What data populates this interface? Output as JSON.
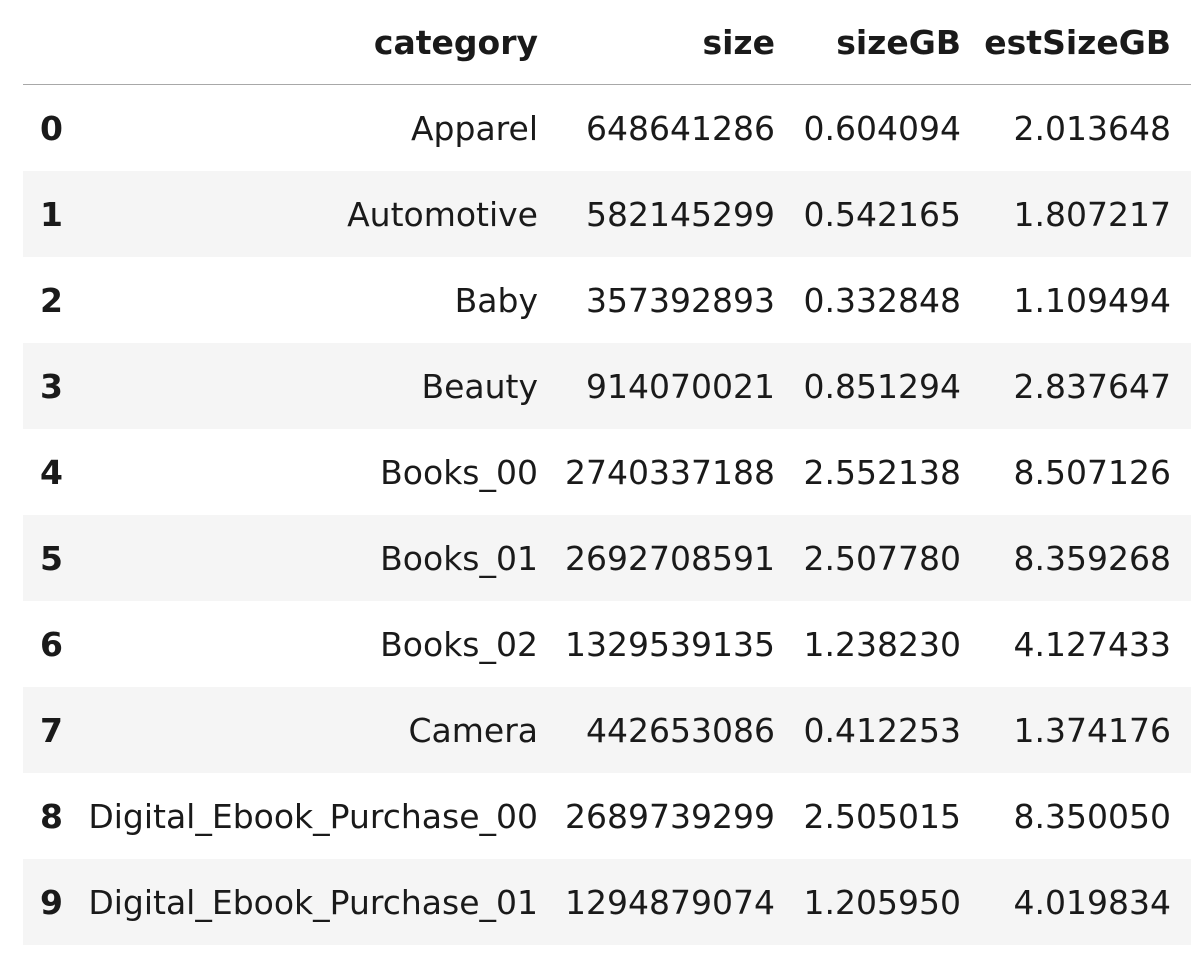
{
  "table": {
    "columns": [
      "",
      "category",
      "size",
      "sizeGB",
      "estSizeGB"
    ],
    "rows": [
      {
        "index": "0",
        "category": "Apparel",
        "size": "648641286",
        "sizeGB": "0.604094",
        "estSizeGB": "2.013648"
      },
      {
        "index": "1",
        "category": "Automotive",
        "size": "582145299",
        "sizeGB": "0.542165",
        "estSizeGB": "1.807217"
      },
      {
        "index": "2",
        "category": "Baby",
        "size": "357392893",
        "sizeGB": "0.332848",
        "estSizeGB": "1.109494"
      },
      {
        "index": "3",
        "category": "Beauty",
        "size": "914070021",
        "sizeGB": "0.851294",
        "estSizeGB": "2.837647"
      },
      {
        "index": "4",
        "category": "Books_00",
        "size": "2740337188",
        "sizeGB": "2.552138",
        "estSizeGB": "8.507126"
      },
      {
        "index": "5",
        "category": "Books_01",
        "size": "2692708591",
        "sizeGB": "2.507780",
        "estSizeGB": "8.359268"
      },
      {
        "index": "6",
        "category": "Books_02",
        "size": "1329539135",
        "sizeGB": "1.238230",
        "estSizeGB": "4.127433"
      },
      {
        "index": "7",
        "category": "Camera",
        "size": "442653086",
        "sizeGB": "0.412253",
        "estSizeGB": "1.374176"
      },
      {
        "index": "8",
        "category": "Digital_Ebook_Purchase_00",
        "size": "2689739299",
        "sizeGB": "2.505015",
        "estSizeGB": "8.350050"
      },
      {
        "index": "9",
        "category": "Digital_Ebook_Purchase_01",
        "size": "1294879074",
        "sizeGB": "1.205950",
        "estSizeGB": "4.019834"
      }
    ]
  }
}
